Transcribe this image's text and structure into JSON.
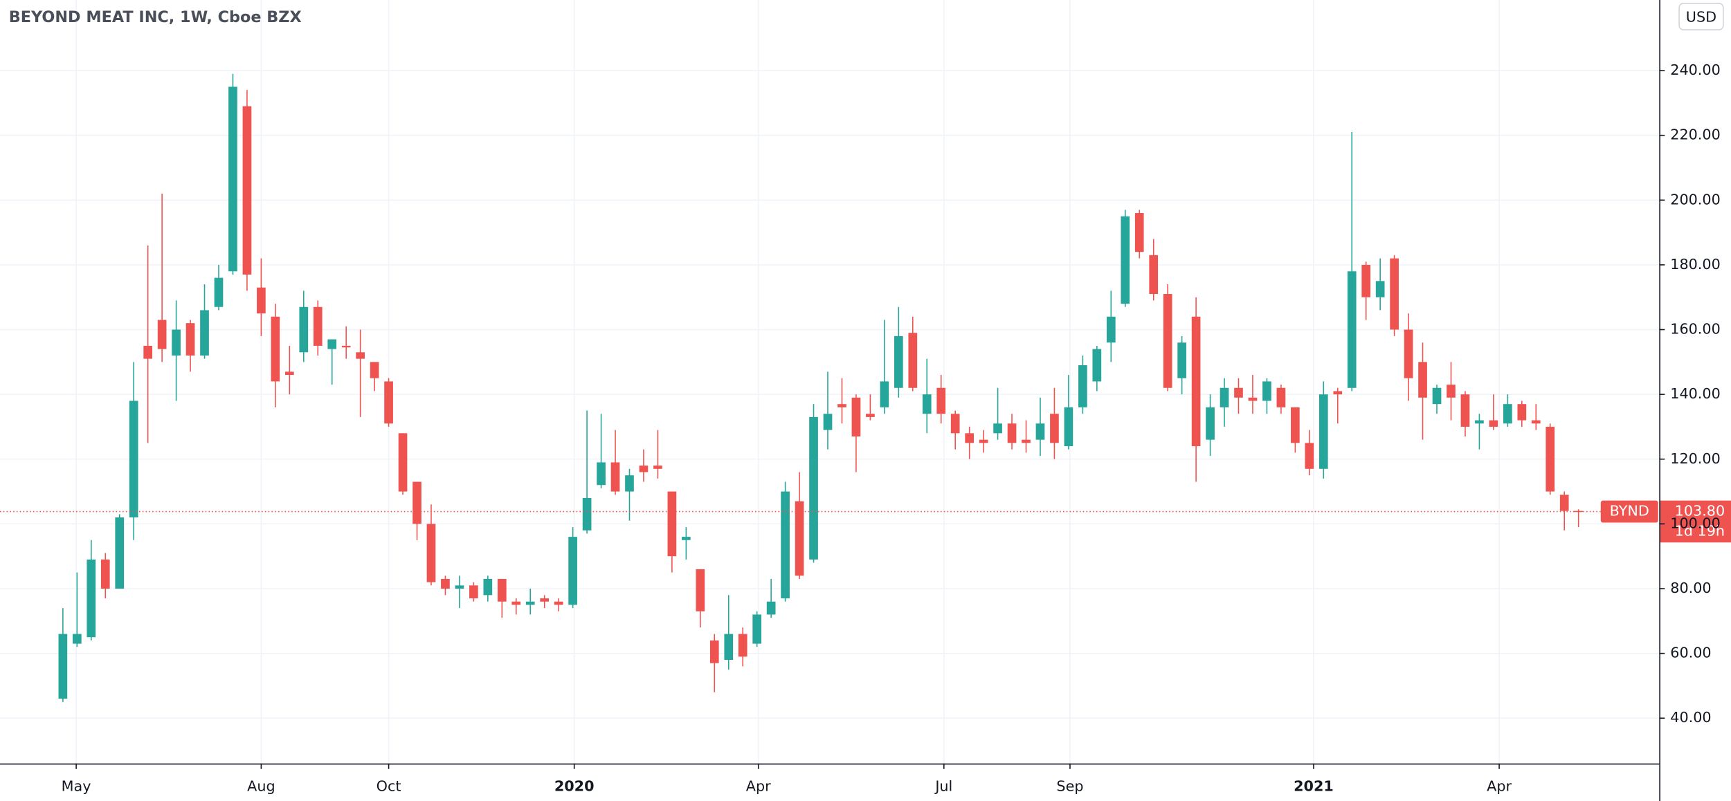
{
  "chart_data": {
    "type": "candlestick",
    "title": "BEYOND MEAT INC, 1W, Cboe BZX",
    "currency": "USD",
    "ticker": "BYND",
    "countdown": "1d 19h",
    "last_price": {
      "value": 103.8,
      "label": "103.80"
    },
    "up_color": "#26a69a",
    "down_color": "#ef5350",
    "grid": true,
    "open": [
      46,
      63,
      65,
      89,
      80,
      102,
      155,
      163,
      152,
      162,
      152,
      167,
      178,
      229,
      173,
      164,
      147,
      153,
      167,
      154,
      155,
      153,
      150,
      144,
      128,
      113,
      100,
      83,
      80,
      81,
      78,
      83,
      76,
      75,
      77,
      76,
      75,
      98,
      112,
      119,
      110,
      118,
      118,
      110,
      95,
      86,
      64,
      58,
      66,
      63,
      72,
      77,
      107,
      89,
      129,
      137,
      139,
      134,
      136,
      142,
      159,
      134,
      142,
      134,
      128,
      126,
      128,
      131,
      126,
      126,
      134,
      124,
      136,
      144,
      156,
      168,
      196,
      183,
      171,
      145,
      164,
      126,
      136,
      142,
      139,
      138,
      142,
      136,
      125,
      117,
      141,
      142,
      180,
      170,
      182,
      160,
      150,
      137,
      143,
      140,
      131,
      132,
      131,
      137,
      132,
      130,
      109,
      104
    ],
    "high": [
      74,
      85,
      95,
      91,
      103,
      150,
      186,
      202,
      169,
      163,
      174,
      180,
      239,
      234,
      182,
      168,
      155,
      172,
      169,
      157,
      161,
      160,
      150,
      145,
      128,
      113,
      106,
      84,
      84,
      82,
      84,
      83,
      77,
      80,
      78,
      77,
      99,
      135,
      134,
      129,
      117,
      123,
      129,
      110,
      99,
      86,
      66,
      78,
      68,
      73,
      83,
      113,
      116,
      137,
      147,
      145,
      140,
      140,
      163,
      167,
      164,
      151,
      146,
      135,
      130,
      129,
      142,
      134,
      132,
      139,
      142,
      146,
      152,
      155,
      172,
      197,
      197,
      188,
      174,
      158,
      170,
      140,
      145,
      145,
      146,
      145,
      143,
      136,
      129,
      144,
      142,
      221,
      181,
      182,
      183,
      165,
      156,
      143,
      150,
      141,
      134,
      140,
      140,
      138,
      137,
      131,
      110,
      104.5
    ],
    "low": [
      45,
      62,
      64,
      77,
      80,
      95,
      125,
      150,
      138,
      147,
      151,
      166,
      177,
      172,
      158,
      136,
      140,
      150,
      152,
      143,
      151,
      133,
      141,
      130,
      109,
      95,
      81,
      78,
      74,
      76,
      76,
      71,
      72,
      72,
      74,
      73,
      74,
      97,
      111,
      109,
      101,
      113,
      114,
      85,
      89,
      68,
      48,
      55,
      56,
      62,
      71,
      76,
      83,
      88,
      123,
      131,
      116,
      132,
      134,
      139,
      141,
      128,
      131,
      123,
      120,
      122,
      126,
      123,
      122,
      121,
      120,
      123,
      134,
      141,
      150,
      167,
      182,
      169,
      141,
      140,
      113,
      121,
      130,
      134,
      134,
      134,
      134,
      122,
      115,
      114,
      131,
      141,
      163,
      166,
      158,
      138,
      126,
      134,
      132,
      127,
      123,
      129,
      130,
      130,
      129,
      109,
      98,
      99
    ],
    "close": [
      66,
      66,
      89,
      80,
      102,
      138,
      151,
      154,
      160,
      152,
      166,
      176,
      235,
      177,
      165,
      144,
      146,
      167,
      155,
      157,
      154.5,
      151,
      145,
      131,
      110,
      100,
      82,
      80,
      81,
      77,
      83,
      76,
      75,
      76,
      76,
      75,
      96,
      108,
      119,
      110,
      115,
      116,
      117,
      90,
      96,
      73,
      57,
      66,
      59,
      72,
      76,
      110,
      84,
      133,
      134,
      136,
      127,
      133,
      144,
      158,
      142,
      140,
      134,
      128,
      125,
      125,
      131,
      125,
      125,
      131,
      125,
      136,
      149,
      154,
      164,
      195,
      184,
      171,
      142,
      156,
      124,
      136,
      142,
      139,
      138,
      144,
      136,
      125,
      117,
      140,
      140,
      178,
      170,
      175,
      160,
      145,
      139,
      142,
      139,
      130,
      132,
      130,
      137,
      132,
      131,
      110,
      104,
      103.8
    ],
    "xlim": [
      -4.44,
      112.7
    ],
    "xticks": [
      {
        "value": 0.94,
        "label": "May"
      },
      {
        "value": 14.0,
        "label": "Aug"
      },
      {
        "value": 23.0,
        "label": "Oct"
      },
      {
        "value": 36.1,
        "label": "2020"
      },
      {
        "value": 49.1,
        "label": "Apr"
      },
      {
        "value": 62.2,
        "label": "Jul"
      },
      {
        "value": 71.1,
        "label": "Sep"
      },
      {
        "value": 88.3,
        "label": "2021"
      },
      {
        "value": 101.4,
        "label": "Apr"
      }
    ],
    "ylim": [
      26.0,
      261.8
    ],
    "yticks": [
      {
        "value": 40,
        "label": "40.00"
      },
      {
        "value": 60,
        "label": "60.00"
      },
      {
        "value": 80,
        "label": "80.00"
      },
      {
        "value": 100,
        "label": "100.00"
      },
      {
        "value": 120,
        "label": "120.00"
      },
      {
        "value": 140,
        "label": "140.00"
      },
      {
        "value": 160,
        "label": "160.00"
      },
      {
        "value": 180,
        "label": "180.00"
      },
      {
        "value": 200,
        "label": "200.00"
      },
      {
        "value": 220,
        "label": "220.00"
      },
      {
        "value": 240,
        "label": "240.00"
      }
    ]
  }
}
